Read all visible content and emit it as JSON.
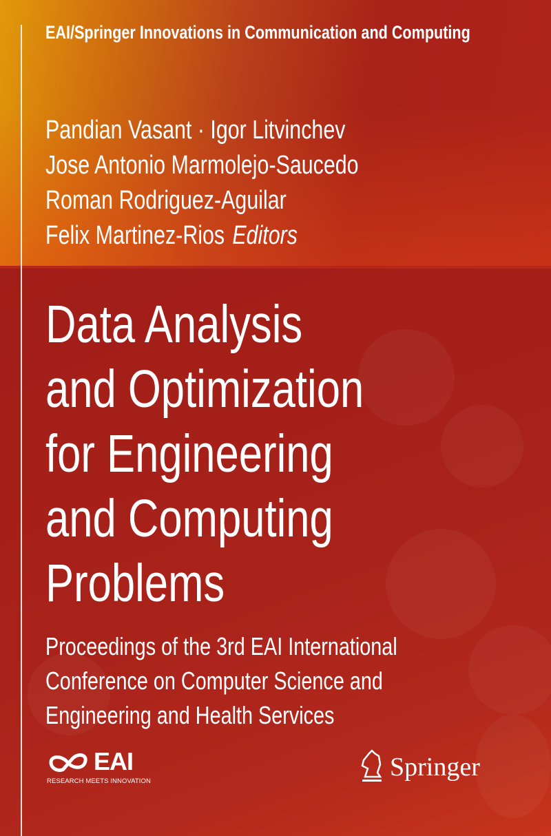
{
  "series": "EAI/Springer Innovations in Communication and Computing",
  "authors": [
    "Pandian Vasant · Igor Litvinchev",
    "Jose Antonio Marmolejo-Saucedo",
    "Roman Rodriguez-Aguilar",
    "Felix Martinez-Rios"
  ],
  "editors_label": "Editors",
  "title_lines": [
    "Data Analysis",
    "and Optimization",
    "for Engineering",
    "and Computing",
    "Problems"
  ],
  "subtitle_lines": [
    "Proceedings of the 3rd EAI International",
    "Conference on Computer Science and",
    "Engineering and Health Services"
  ],
  "eai_logo": {
    "text": "EAI",
    "tagline": "RESEARCH MEETS INNOVATION",
    "icon": "eai-infinity-icon"
  },
  "publisher_logo": {
    "text": "Springer",
    "icon": "springer-horse-icon"
  },
  "colors": {
    "top_left": "#e19a0a",
    "red": "#a3201a",
    "text": "#ffffff"
  }
}
